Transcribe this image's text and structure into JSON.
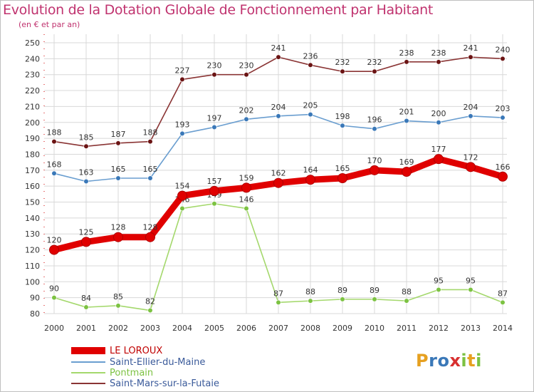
{
  "title": "Evolution de la Dotation Globale de Fonctionnement par Habitant",
  "subtitle": "(en € et par an)",
  "brand": "Proxiti",
  "colors": {
    "title": "#c0336f",
    "grid": "#d8d8d8",
    "axis_marks": "#e05050"
  },
  "chart_data": {
    "type": "line",
    "x": [
      2000,
      2001,
      2002,
      2003,
      2004,
      2005,
      2006,
      2007,
      2008,
      2009,
      2010,
      2011,
      2012,
      2013,
      2014
    ],
    "ylim": [
      80,
      250
    ],
    "yticks": [
      80,
      90,
      100,
      110,
      120,
      130,
      140,
      150,
      160,
      170,
      180,
      190,
      200,
      210,
      220,
      230,
      240,
      250
    ],
    "grid": true,
    "legend_placement": "bottom-left",
    "series": [
      {
        "name": "LE LOROUX",
        "color": "#e00000",
        "marker": "#e00000",
        "thick": true,
        "values": [
          120,
          125,
          128,
          128,
          154,
          157,
          159,
          162,
          164,
          165,
          170,
          169,
          177,
          172,
          166
        ]
      },
      {
        "name": "Saint-Ellier-du-Maine",
        "color": "#6a9ed0",
        "marker": "#3a78b8",
        "thick": false,
        "values": [
          168,
          163,
          165,
          165,
          193,
          197,
          202,
          204,
          205,
          198,
          196,
          201,
          200,
          204,
          203
        ]
      },
      {
        "name": "Pontmain",
        "color": "#a4d86c",
        "marker": "#7cc242",
        "thick": false,
        "values": [
          90,
          84,
          85,
          82,
          146,
          149,
          146,
          87,
          88,
          89,
          89,
          88,
          95,
          95,
          87
        ]
      },
      {
        "name": "Saint-Mars-sur-la-Futaie",
        "color": "#8a3434",
        "marker": "#6b1414",
        "thick": false,
        "values": [
          188,
          185,
          187,
          188,
          227,
          230,
          230,
          241,
          236,
          232,
          232,
          238,
          238,
          241,
          240
        ]
      }
    ]
  }
}
